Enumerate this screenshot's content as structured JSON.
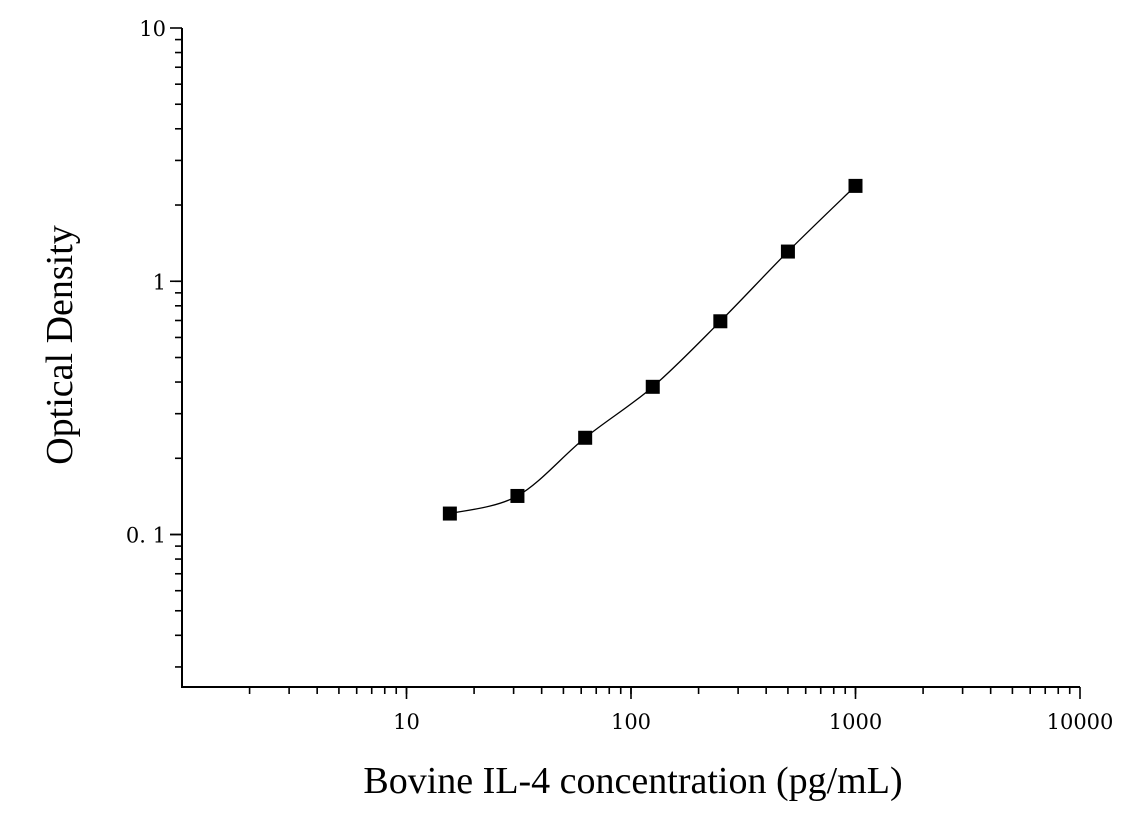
{
  "chart_data": {
    "type": "scatter",
    "xlabel": "Bovine IL-4 concentration (pg/mL)",
    "ylabel": "Optical Density",
    "x_scale": "log",
    "y_scale": "log",
    "xlim": [
      1,
      10000
    ],
    "ylim": [
      0.025,
      10
    ],
    "x_tick_labels": [
      {
        "value": 10,
        "label": "10"
      },
      {
        "value": 100,
        "label": "100"
      },
      {
        "value": 1000,
        "label": "1000"
      },
      {
        "value": 10000,
        "label": "10000"
      }
    ],
    "y_tick_labels": [
      {
        "value": 0.1,
        "label": "0. 1"
      },
      {
        "value": 1,
        "label": "1"
      },
      {
        "value": 10,
        "label": "10"
      }
    ],
    "grid": false,
    "series": [
      {
        "marker": "square",
        "color": "#000000",
        "fit_curve": true,
        "x": [
          15.6,
          31.2,
          62.5,
          125,
          250,
          500,
          1000
        ],
        "y": [
          0.121,
          0.142,
          0.241,
          0.383,
          0.695,
          1.31,
          2.38
        ]
      }
    ]
  }
}
